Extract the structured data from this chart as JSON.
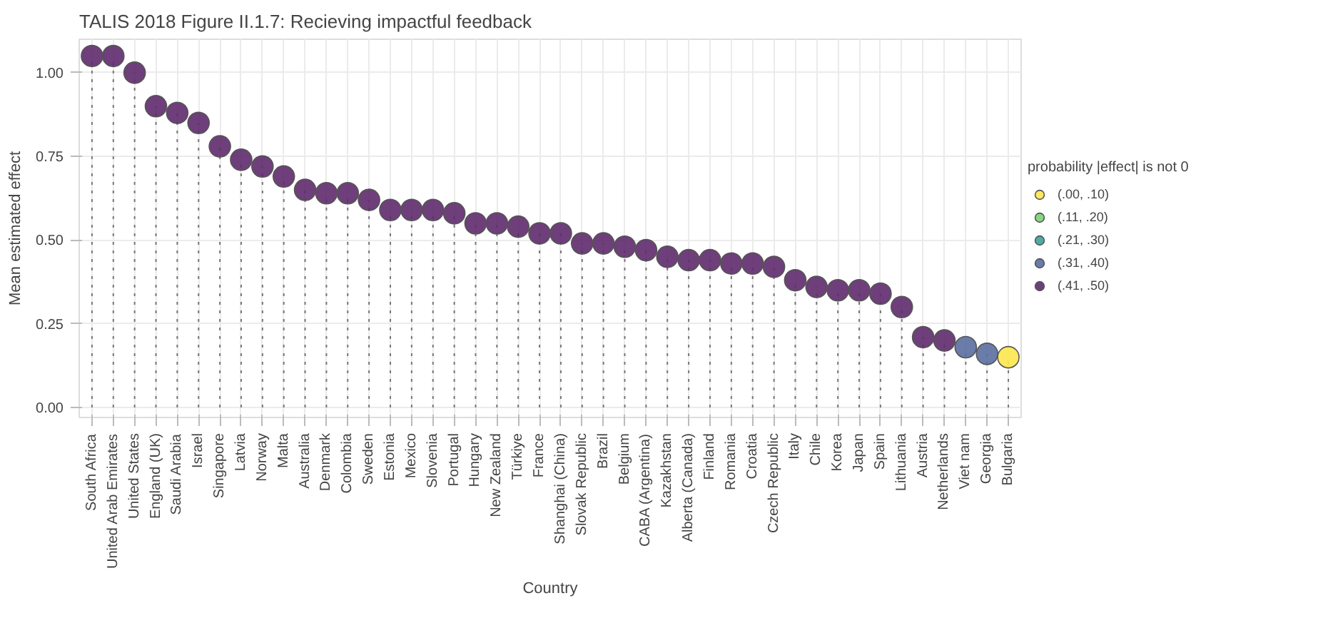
{
  "chart_data": {
    "type": "lollipop",
    "title": "TALIS 2018 Figure II.1.7: Recieving impactful feedback",
    "xlabel": "Country",
    "ylabel": "Mean estimated effect",
    "legend_title": "probability |effect| is not 0",
    "categories": [
      "South Africa",
      "United Arab Emirates",
      "United States",
      "England (UK)",
      "Saudi Arabia",
      "Israel",
      "Singapore",
      "Latvia",
      "Norway",
      "Malta",
      "Australia",
      "Denmark",
      "Colombia",
      "Sweden",
      "Estonia",
      "Mexico",
      "Slovenia",
      "Portugal",
      "Hungary",
      "New Zealand",
      "Türkiye",
      "France",
      "Shanghai (China)",
      "Slovak Republic",
      "Brazil",
      "Belgium",
      "CABA (Argentina)",
      "Kazakhstan",
      "Alberta (Canada)",
      "Finland",
      "Romania",
      "Croatia",
      "Czech Republic",
      "Italy",
      "Chile",
      "Korea",
      "Japan",
      "Spain",
      "Lithuania",
      "Austria",
      "Netherlands",
      "Viet nam",
      "Georgia",
      "Bulgaria"
    ],
    "series": [
      {
        "name": "(.00, .10)",
        "color": "#fde74c",
        "values": [
          null,
          null,
          null,
          null,
          null,
          null,
          null,
          null,
          null,
          null,
          null,
          null,
          null,
          null,
          null,
          null,
          null,
          null,
          null,
          null,
          null,
          null,
          null,
          null,
          null,
          null,
          null,
          null,
          null,
          null,
          null,
          null,
          null,
          null,
          null,
          null,
          null,
          null,
          null,
          null,
          null,
          null,
          null,
          0.15
        ]
      },
      {
        "name": "(.11, .20)",
        "color": "#7ad173",
        "values": [
          null,
          null,
          null,
          null,
          null,
          null,
          null,
          null,
          null,
          null,
          null,
          null,
          null,
          null,
          null,
          null,
          null,
          null,
          null,
          null,
          null,
          null,
          null,
          null,
          null,
          null,
          null,
          null,
          null,
          null,
          null,
          null,
          null,
          null,
          null,
          null,
          null,
          null,
          null,
          null,
          null,
          null,
          null,
          null
        ]
      },
      {
        "name": "(.21, .30)",
        "color": "#3ba39b",
        "values": [
          null,
          null,
          null,
          null,
          null,
          null,
          null,
          null,
          null,
          null,
          null,
          null,
          null,
          null,
          null,
          null,
          null,
          null,
          null,
          null,
          null,
          null,
          null,
          null,
          null,
          null,
          null,
          null,
          null,
          null,
          null,
          null,
          null,
          null,
          null,
          null,
          null,
          null,
          null,
          null,
          null,
          null,
          null,
          null
        ]
      },
      {
        "name": "(.31, .40)",
        "color": "#5a6ea0",
        "values": [
          null,
          null,
          null,
          null,
          null,
          null,
          null,
          null,
          null,
          null,
          null,
          null,
          null,
          null,
          null,
          null,
          null,
          null,
          null,
          null,
          null,
          null,
          null,
          null,
          null,
          null,
          null,
          null,
          null,
          null,
          null,
          null,
          null,
          null,
          null,
          null,
          null,
          null,
          null,
          null,
          null,
          0.18,
          0.16,
          null
        ]
      },
      {
        "name": "(.41, .50)",
        "color": "#5e2a6c",
        "values": [
          1.05,
          1.05,
          1.0,
          0.9,
          0.88,
          0.85,
          0.78,
          0.74,
          0.72,
          0.69,
          0.65,
          0.64,
          0.64,
          0.62,
          0.59,
          0.59,
          0.59,
          0.58,
          0.55,
          0.55,
          0.54,
          0.52,
          0.52,
          0.49,
          0.49,
          0.48,
          0.47,
          0.45,
          0.44,
          0.44,
          0.43,
          0.43,
          0.42,
          0.38,
          0.36,
          0.35,
          0.35,
          0.34,
          0.3,
          0.21,
          0.2,
          null,
          null,
          null
        ]
      }
    ],
    "ylim": [
      -0.03,
      1.1
    ],
    "yticks": [
      {
        "value": 0,
        "label": "0.00"
      },
      {
        "value": 0.25,
        "label": "0.25"
      },
      {
        "value": 0.5,
        "label": "0.50"
      },
      {
        "value": 0.75,
        "label": "0.75"
      },
      {
        "value": 1.0,
        "label": "1.00"
      }
    ],
    "grid": true,
    "legend": "right",
    "marker": "circle",
    "line_style": "dotted"
  }
}
